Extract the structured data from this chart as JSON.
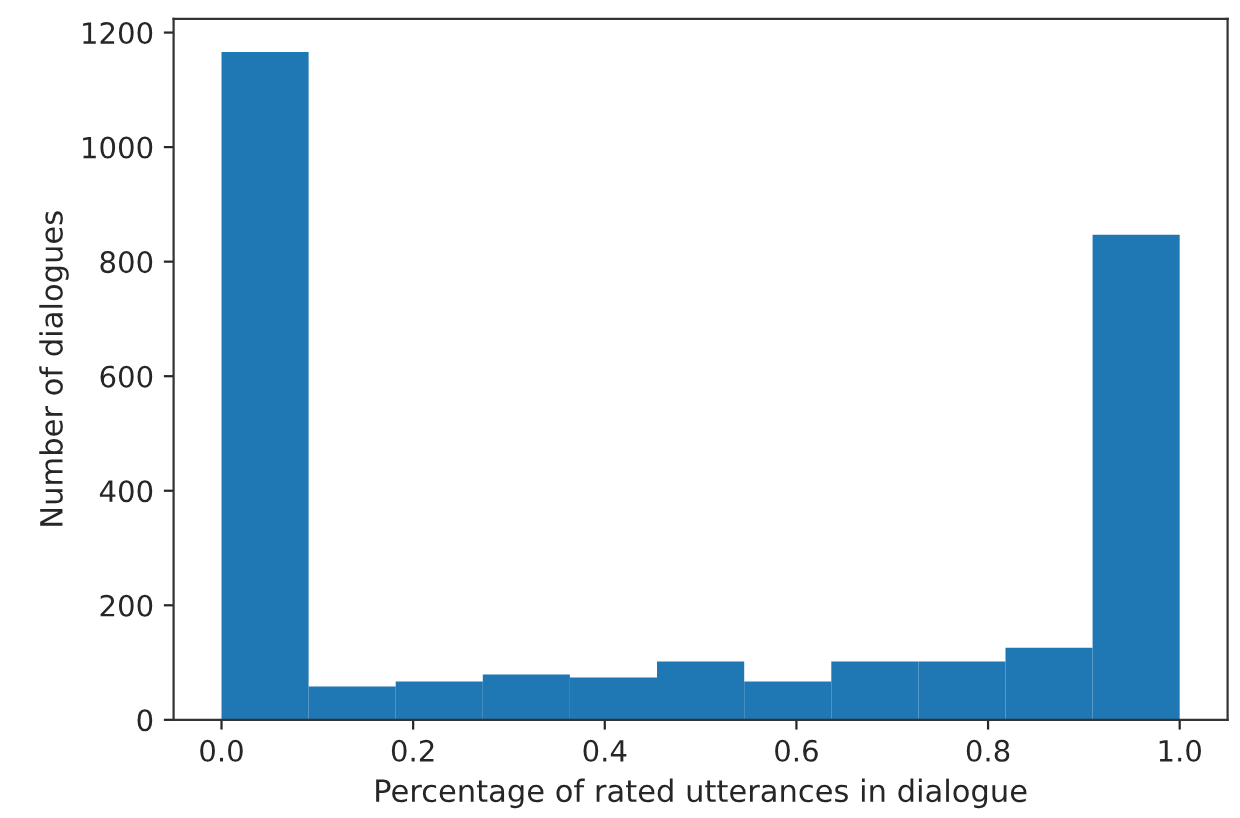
{
  "chart_data": {
    "type": "histogram",
    "xlabel": "Percentage of rated utterances in dialogue",
    "ylabel": "Number of dialogues",
    "bins": [
      0.0,
      0.0909,
      0.1818,
      0.2727,
      0.3636,
      0.4545,
      0.5455,
      0.6364,
      0.7273,
      0.8182,
      0.9091,
      1.0
    ],
    "values": [
      1166,
      58,
      67,
      79,
      74,
      102,
      67,
      102,
      102,
      126,
      847
    ],
    "color": "#1f77b4",
    "xlim": [
      -0.05,
      1.05
    ],
    "xticks": [
      {
        "value": 0.0,
        "label": "0.0"
      },
      0.2,
      0.4,
      0.6,
      0.8,
      {
        "value": 1.0,
        "label": "1.0"
      }
    ],
    "ylim": [
      0,
      1224
    ],
    "yticks": [
      0,
      200,
      400,
      600,
      800,
      1000,
      1200
    ],
    "grid": false
  }
}
